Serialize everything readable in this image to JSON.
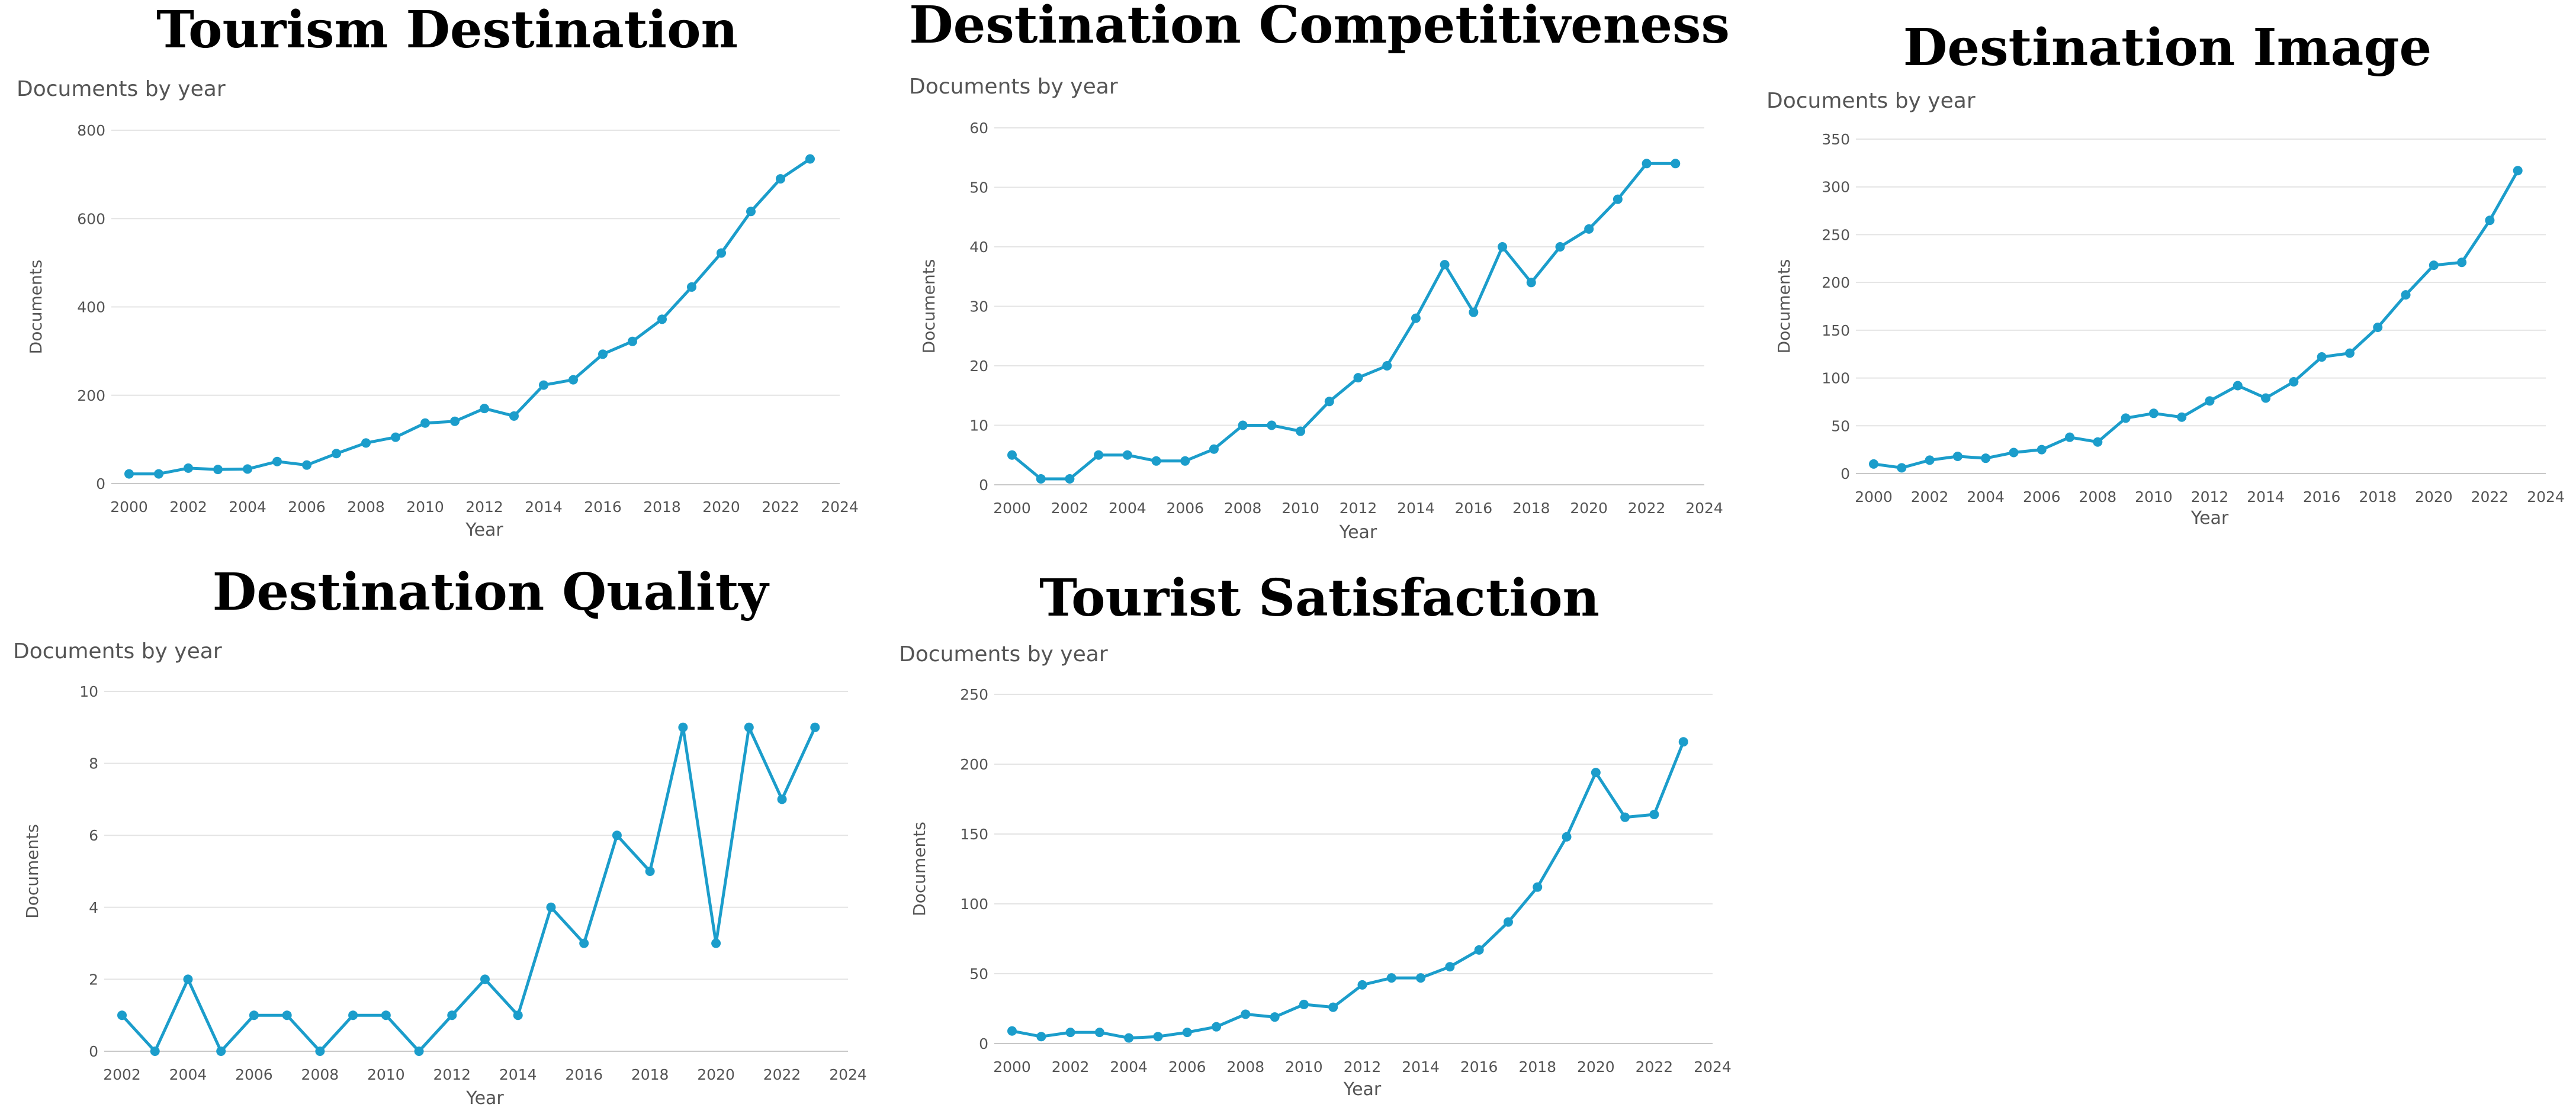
{
  "line_color": "#1b9dcb",
  "grid_color": "#e4e4e4",
  "chart_data": [
    {
      "type": "line",
      "title": "Tourism Destination",
      "subtitle": "Documents by year",
      "xlabel": "Year",
      "ylabel": "Documents",
      "x": [
        2000,
        2001,
        2002,
        2003,
        2004,
        2005,
        2006,
        2007,
        2008,
        2009,
        2010,
        2011,
        2012,
        2013,
        2014,
        2015,
        2016,
        2017,
        2018,
        2019,
        2020,
        2021,
        2022,
        2023
      ],
      "values": [
        22,
        22,
        35,
        32,
        33,
        50,
        42,
        68,
        92,
        105,
        137,
        141,
        170,
        153,
        223,
        235,
        293,
        322,
        372,
        445,
        522,
        616,
        690,
        735
      ],
      "xlim": [
        2000,
        2024
      ],
      "ylim": [
        0,
        800
      ],
      "xticks": [
        2000,
        2002,
        2004,
        2006,
        2008,
        2010,
        2012,
        2014,
        2016,
        2018,
        2020,
        2022,
        2024
      ],
      "yticks": [
        0,
        200,
        400,
        600,
        800
      ]
    },
    {
      "type": "line",
      "title": "Destination Competitiveness",
      "subtitle": "Documents by year",
      "xlabel": "Year",
      "ylabel": "Documents",
      "x": [
        2000,
        2001,
        2002,
        2003,
        2004,
        2005,
        2006,
        2007,
        2008,
        2009,
        2010,
        2011,
        2012,
        2013,
        2014,
        2015,
        2016,
        2017,
        2018,
        2019,
        2020,
        2021,
        2022,
        2023
      ],
      "values": [
        5,
        1,
        1,
        5,
        5,
        4,
        4,
        6,
        10,
        10,
        9,
        14,
        18,
        20,
        28,
        37,
        29,
        40,
        34,
        40,
        43,
        48,
        54,
        54
      ],
      "xlim": [
        2000,
        2024
      ],
      "ylim": [
        0,
        60
      ],
      "xticks": [
        2000,
        2002,
        2004,
        2006,
        2008,
        2010,
        2012,
        2014,
        2016,
        2018,
        2020,
        2022,
        2024
      ],
      "yticks": [
        0,
        10,
        20,
        30,
        40,
        50,
        60
      ]
    },
    {
      "type": "line",
      "title": "Destination Image",
      "subtitle": "Documents by year",
      "xlabel": "Year",
      "ylabel": "Documents",
      "x": [
        2000,
        2001,
        2002,
        2003,
        2004,
        2005,
        2006,
        2007,
        2008,
        2009,
        2010,
        2011,
        2012,
        2013,
        2014,
        2015,
        2016,
        2017,
        2018,
        2019,
        2020,
        2021,
        2022,
        2023
      ],
      "values": [
        10,
        6,
        14,
        18,
        16,
        22,
        25,
        38,
        33,
        58,
        63,
        59,
        76,
        92,
        79,
        96,
        122,
        126,
        153,
        187,
        218,
        221,
        265,
        317
      ],
      "xlim": [
        2000,
        2024
      ],
      "ylim": [
        0,
        350
      ],
      "xticks": [
        2000,
        2002,
        2004,
        2006,
        2008,
        2010,
        2012,
        2014,
        2016,
        2018,
        2020,
        2022,
        2024
      ],
      "yticks": [
        0,
        50,
        100,
        150,
        200,
        250,
        300,
        350
      ]
    },
    {
      "type": "line",
      "title": "Destination Quality",
      "subtitle": "Documents by year",
      "xlabel": "Year",
      "ylabel": "Documents",
      "x": [
        2002,
        2003,
        2004,
        2005,
        2006,
        2007,
        2008,
        2009,
        2010,
        2011,
        2012,
        2013,
        2014,
        2015,
        2016,
        2017,
        2018,
        2019,
        2020,
        2021,
        2022,
        2023
      ],
      "values": [
        1,
        0,
        2,
        0,
        1,
        1,
        0,
        1,
        1,
        0,
        1,
        2,
        1,
        4,
        3,
        6,
        5,
        9,
        3,
        9,
        7,
        9
      ],
      "xlim": [
        2002,
        2024
      ],
      "ylim": [
        0,
        10
      ],
      "xticks": [
        2002,
        2004,
        2006,
        2008,
        2010,
        2012,
        2014,
        2016,
        2018,
        2020,
        2022,
        2024
      ],
      "yticks": [
        0,
        2,
        4,
        6,
        8,
        10
      ]
    },
    {
      "type": "line",
      "title": "Tourist Satisfaction",
      "subtitle": "Documents by year",
      "xlabel": "Year",
      "ylabel": "Documents",
      "x": [
        2000,
        2001,
        2002,
        2003,
        2004,
        2005,
        2006,
        2007,
        2008,
        2009,
        2010,
        2011,
        2012,
        2013,
        2014,
        2015,
        2016,
        2017,
        2018,
        2019,
        2020,
        2021,
        2022,
        2023
      ],
      "values": [
        9,
        5,
        8,
        8,
        4,
        5,
        8,
        12,
        21,
        19,
        28,
        26,
        42,
        47,
        47,
        55,
        67,
        87,
        112,
        148,
        194,
        162,
        164,
        216
      ],
      "xlim": [
        2000,
        2024
      ],
      "ylim": [
        0,
        250
      ],
      "xticks": [
        2000,
        2002,
        2004,
        2006,
        2008,
        2010,
        2012,
        2014,
        2016,
        2018,
        2020,
        2022,
        2024
      ],
      "yticks": [
        0,
        50,
        100,
        150,
        200,
        250
      ]
    }
  ]
}
